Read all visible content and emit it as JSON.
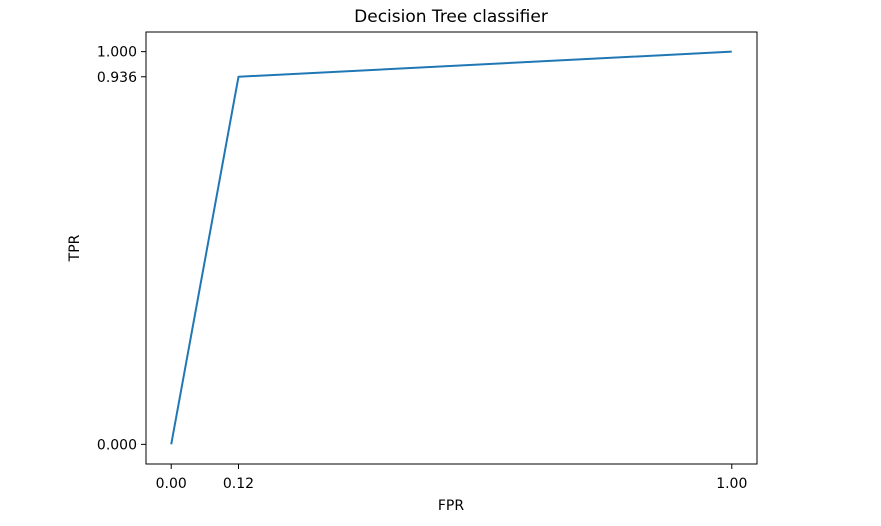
{
  "chart_data": {
    "type": "line",
    "title": "Decision Tree classifier",
    "xlabel": "FPR",
    "ylabel": "TPR",
    "x": [
      0.0,
      0.12,
      1.0
    ],
    "series": [
      {
        "values": [
          0.0,
          0.936,
          1.0
        ]
      }
    ],
    "xlim": [
      -0.045,
      1.045
    ],
    "ylim": [
      -0.05,
      1.05
    ],
    "xticks": [
      0.0,
      0.12,
      1.0
    ],
    "xtick_labels": [
      "0.00",
      "0.12",
      "1.00"
    ],
    "yticks": [
      0.0,
      0.936,
      1.0
    ],
    "ytick_labels": [
      "0.000",
      "0.936",
      "1.000"
    ],
    "grid": false,
    "colors": {
      "line": "#1f77b4",
      "axes": "#000000"
    }
  }
}
